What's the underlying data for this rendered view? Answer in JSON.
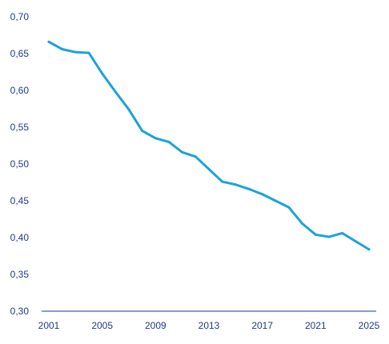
{
  "chart_data": {
    "type": "line",
    "title": "",
    "xlabel": "",
    "ylabel": "",
    "xlim": [
      2001,
      2025
    ],
    "ylim": [
      0.3,
      0.7
    ],
    "grid": false,
    "x_ticks": [
      2001,
      2005,
      2009,
      2013,
      2017,
      2021,
      2025
    ],
    "x_tick_labels": [
      "2001",
      "2005",
      "2009",
      "2013",
      "2017",
      "2021",
      "2025"
    ],
    "y_ticks": [
      0.3,
      0.35,
      0.4,
      0.45,
      0.5,
      0.55,
      0.6,
      0.65,
      0.7
    ],
    "y_tick_labels": [
      "0,30",
      "0,35",
      "0,40",
      "0,45",
      "0,50",
      "0,55",
      "0,60",
      "0,65",
      "0,70"
    ],
    "series": [
      {
        "color": "#1aa3d9",
        "x": [
          2001,
          2002,
          2003,
          2004,
          2005,
          2006,
          2007,
          2008,
          2009,
          2010,
          2011,
          2012,
          2013,
          2014,
          2015,
          2016,
          2017,
          2018,
          2019,
          2020,
          2021,
          2022,
          2023,
          2024,
          2025
        ],
        "values": [
          0.666,
          0.656,
          0.652,
          0.651,
          0.623,
          0.598,
          0.574,
          0.545,
          0.535,
          0.53,
          0.516,
          0.51,
          0.493,
          0.476,
          0.472,
          0.466,
          0.459,
          0.45,
          0.441,
          0.419,
          0.404,
          0.401,
          0.406,
          0.395,
          0.384
        ]
      }
    ],
    "axis_color": "#1f3a8a",
    "label_color": "#1f3a8a"
  }
}
